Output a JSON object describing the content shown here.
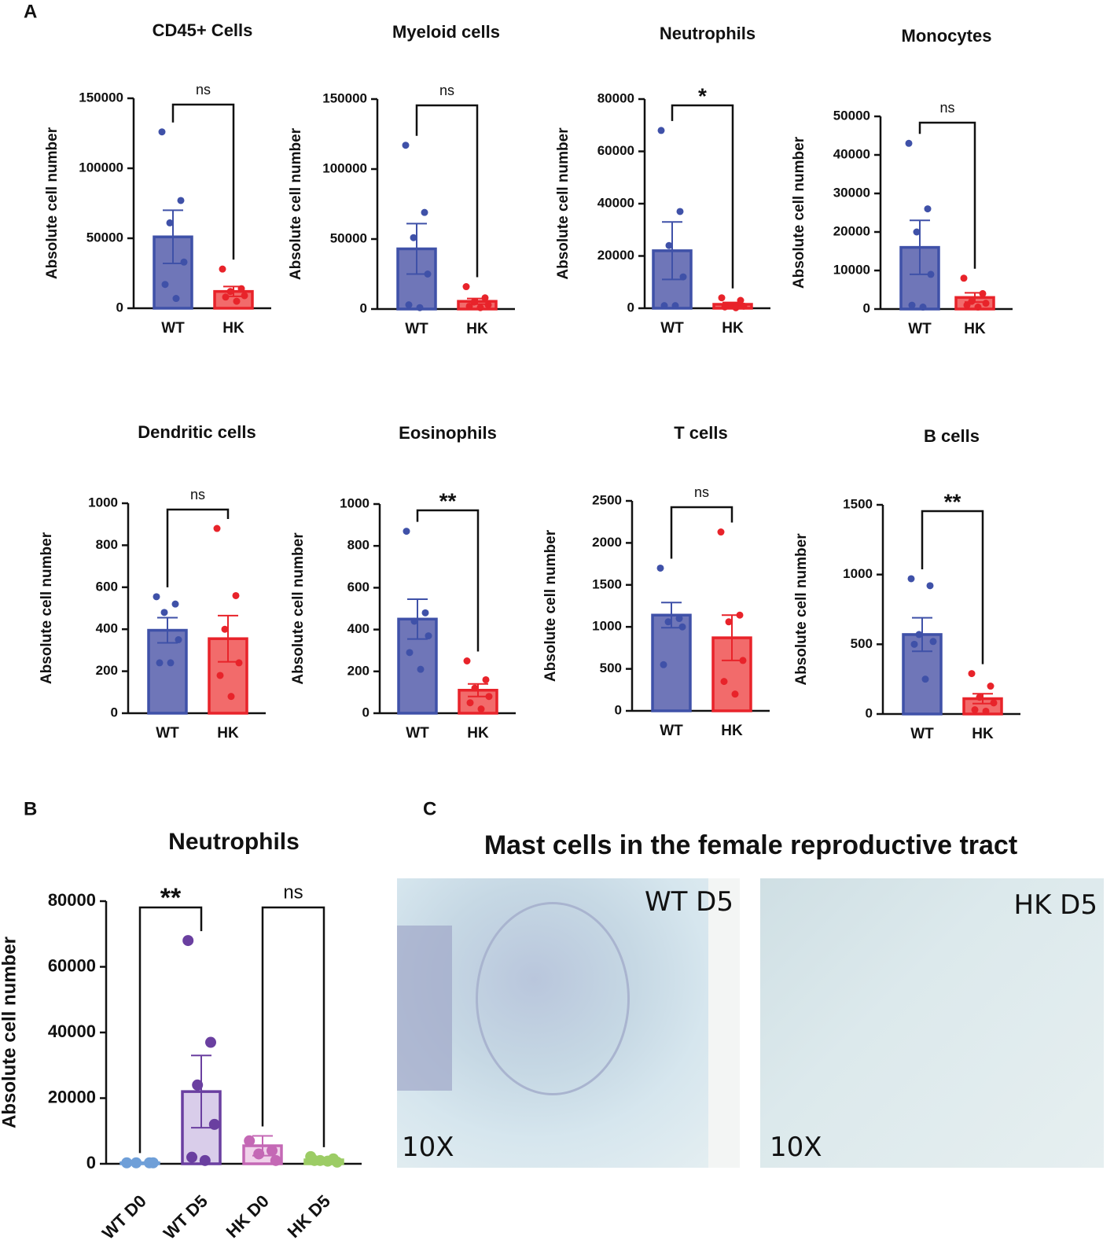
{
  "panel_labels": [
    "A",
    "B",
    "C"
  ],
  "chart_data": [
    {
      "type": "bar",
      "title": "CD45+ Cells",
      "ylabel": "Absolute cell number",
      "categories": [
        "WT",
        "HK"
      ],
      "values": [
        51000,
        12000
      ],
      "errors": [
        19000,
        3500
      ],
      "points": [
        [
          126000,
          77000,
          61000,
          33000,
          17000,
          7000
        ],
        [
          28000,
          14000,
          12000,
          9000,
          8000,
          5000
        ]
      ],
      "colors": [
        "#3f51a8",
        "#e8232a"
      ],
      "fills": [
        "#6f76b8",
        "#f26b6b"
      ],
      "ylim": [
        0,
        150000
      ],
      "yticks": [
        0,
        50000,
        100000,
        150000
      ],
      "comparisons": [
        {
          "pair": [
            0,
            1
          ],
          "label": "ns"
        }
      ]
    },
    {
      "type": "bar",
      "title": "Myeloid cells",
      "ylabel": "Absolute cell number",
      "categories": [
        "WT",
        "HK"
      ],
      "values": [
        43000,
        5500
      ],
      "errors": [
        18000,
        2000
      ],
      "points": [
        [
          117000,
          69000,
          51000,
          25000,
          3000,
          1000
        ],
        [
          16000,
          8000,
          5000,
          3000,
          2000,
          1000
        ]
      ],
      "colors": [
        "#3f51a8",
        "#e8232a"
      ],
      "fills": [
        "#6f76b8",
        "#f26b6b"
      ],
      "ylim": [
        0,
        150000
      ],
      "yticks": [
        0,
        50000,
        100000,
        150000
      ],
      "comparisons": [
        {
          "pair": [
            0,
            1
          ],
          "label": "ns"
        }
      ]
    },
    {
      "type": "bar",
      "title": "Neutrophils",
      "ylabel": "Absolute cell number",
      "categories": [
        "WT",
        "HK"
      ],
      "values": [
        22000,
        1500
      ],
      "errors": [
        11000,
        700
      ],
      "points": [
        [
          68000,
          37000,
          24000,
          12000,
          1000,
          1000
        ],
        [
          4000,
          3000,
          1000,
          800,
          500,
          200
        ]
      ],
      "colors": [
        "#3f51a8",
        "#e8232a"
      ],
      "fills": [
        "#6f76b8",
        "#f26b6b"
      ],
      "ylim": [
        0,
        80000
      ],
      "yticks": [
        0,
        20000,
        40000,
        60000,
        80000
      ],
      "comparisons": [
        {
          "pair": [
            0,
            1
          ],
          "label": "*"
        }
      ]
    },
    {
      "type": "bar",
      "title": "Monocytes",
      "ylabel": "Absolute cell number",
      "categories": [
        "WT",
        "HK"
      ],
      "values": [
        16000,
        3000
      ],
      "errors": [
        7000,
        1200
      ],
      "points": [
        [
          43000,
          26000,
          20000,
          9000,
          1000,
          500
        ],
        [
          8000,
          4000,
          2000,
          1500,
          1000,
          500
        ]
      ],
      "colors": [
        "#3f51a8",
        "#e8232a"
      ],
      "fills": [
        "#6f76b8",
        "#f26b6b"
      ],
      "ylim": [
        0,
        50000
      ],
      "yticks": [
        0,
        10000,
        20000,
        30000,
        40000,
        50000
      ],
      "comparisons": [
        {
          "pair": [
            0,
            1
          ],
          "label": "ns"
        }
      ]
    },
    {
      "type": "bar",
      "title": "Dendritic cells",
      "ylabel": "Absolute cell number",
      "categories": [
        "WT",
        "HK"
      ],
      "values": [
        395,
        355
      ],
      "errors": [
        60,
        110
      ],
      "points": [
        [
          555,
          520,
          480,
          350,
          240,
          240
        ],
        [
          880,
          560,
          400,
          240,
          180,
          80
        ]
      ],
      "colors": [
        "#3f51a8",
        "#e8232a"
      ],
      "fills": [
        "#6f76b8",
        "#f26b6b"
      ],
      "ylim": [
        0,
        1000
      ],
      "yticks": [
        0,
        200,
        400,
        600,
        800,
        1000
      ],
      "comparisons": [
        {
          "pair": [
            0,
            1
          ],
          "label": "ns"
        }
      ]
    },
    {
      "type": "bar",
      "title": "Eosinophils",
      "ylabel": "Absolute cell number",
      "categories": [
        "WT",
        "HK"
      ],
      "values": [
        450,
        110
      ],
      "errors": [
        95,
        30
      ],
      "points": [
        [
          870,
          480,
          440,
          370,
          290,
          210
        ],
        [
          250,
          160,
          120,
          80,
          50,
          20
        ]
      ],
      "colors": [
        "#3f51a8",
        "#e8232a"
      ],
      "fills": [
        "#6f76b8",
        "#f26b6b"
      ],
      "ylim": [
        0,
        1000
      ],
      "yticks": [
        0,
        200,
        400,
        600,
        800,
        1000
      ],
      "comparisons": [
        {
          "pair": [
            0,
            1
          ],
          "label": "**"
        }
      ]
    },
    {
      "type": "bar",
      "title": "T cells",
      "ylabel": "Absolute cell number",
      "categories": [
        "WT",
        "HK"
      ],
      "values": [
        1140,
        870
      ],
      "errors": [
        150,
        270
      ],
      "points": [
        [
          1700,
          1100,
          1060,
          1000,
          550
        ],
        [
          2130,
          1140,
          1060,
          600,
          350,
          200
        ]
      ],
      "colors": [
        "#3f51a8",
        "#e8232a"
      ],
      "fills": [
        "#6f76b8",
        "#f26b6b"
      ],
      "ylim": [
        0,
        2500
      ],
      "yticks": [
        0,
        500,
        1000,
        1500,
        2000,
        2500
      ],
      "comparisons": [
        {
          "pair": [
            0,
            1
          ],
          "label": "ns"
        }
      ]
    },
    {
      "type": "bar",
      "title": "B cells",
      "ylabel": "Absolute cell number",
      "categories": [
        "WT",
        "HK"
      ],
      "values": [
        570,
        110
      ],
      "errors": [
        120,
        35
      ],
      "points": [
        [
          970,
          920,
          570,
          520,
          500,
          250
        ],
        [
          290,
          200,
          120,
          80,
          30,
          20
        ]
      ],
      "colors": [
        "#3f51a8",
        "#e8232a"
      ],
      "fills": [
        "#6f76b8",
        "#f26b6b"
      ],
      "ylim": [
        0,
        1500
      ],
      "yticks": [
        0,
        500,
        1000,
        1500
      ],
      "comparisons": [
        {
          "pair": [
            0,
            1
          ],
          "label": "**"
        }
      ]
    },
    {
      "type": "bar",
      "title": "Neutrophils",
      "ylabel": "Absolute cell number",
      "categories": [
        "WT D0",
        "WT D5",
        "HK D0",
        "HK D5"
      ],
      "values": [
        300,
        22000,
        5500,
        1200
      ],
      "errors": [
        100,
        11000,
        3000,
        300
      ],
      "points": [
        [
          300,
          300,
          300,
          300
        ],
        [
          68000,
          37000,
          24000,
          12000,
          2000,
          1000
        ],
        [
          7000,
          4000,
          3000,
          1000
        ],
        [
          2200,
          1500,
          1000,
          500,
          1000,
          800
        ]
      ],
      "colors": [
        "#6f9fd8",
        "#6a3fa0",
        "#c468b5",
        "#9ccc65"
      ],
      "fills": [
        "#6f9fd8",
        "#d9cdea",
        "#f0d1ea",
        "#9ccc65"
      ],
      "ylim": [
        0,
        80000
      ],
      "yticks": [
        0,
        20000,
        40000,
        60000,
        80000
      ],
      "comparisons": [
        {
          "pair": [
            0,
            1
          ],
          "label": "**"
        },
        {
          "pair": [
            2,
            3
          ],
          "label": "ns"
        }
      ]
    }
  ],
  "panel_c": {
    "title": "Mast cells in the female reproductive tract",
    "images": [
      {
        "label": "WT D5",
        "magnification": "10X"
      },
      {
        "label": "HK D5",
        "magnification": "10X"
      }
    ]
  }
}
